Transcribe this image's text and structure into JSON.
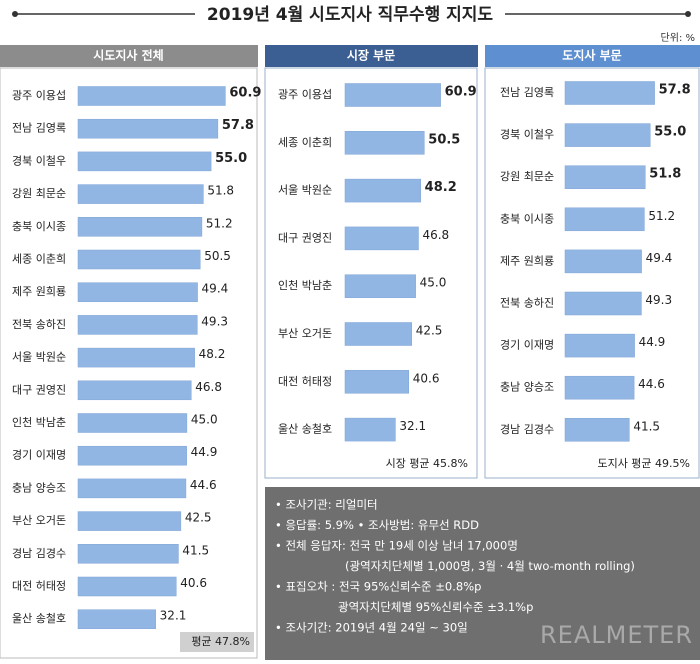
{
  "title": "2019년 4월 시도지사 직무수행 지지도",
  "unit": "단위: %",
  "chart_data": [
    {
      "type": "bar",
      "orientation": "horizontal",
      "title": "시도지사 전체",
      "color": "#92b6e4",
      "categories": [
        "광주 이용섭",
        "전남 김영록",
        "경북 이철우",
        "강원 최문순",
        "충북 이시종",
        "세종 이춘희",
        "제주 원희룡",
        "전북 송하진",
        "서울 박원순",
        "대구 권영진",
        "인천 박남춘",
        "경기 이재명",
        "충남 양승조",
        "부산 오거돈",
        "경남 김경수",
        "대전 허태정",
        "울산 송철호"
      ],
      "values": [
        60.9,
        57.8,
        55.0,
        51.8,
        51.2,
        50.5,
        49.4,
        49.3,
        48.2,
        46.8,
        45.0,
        44.9,
        44.6,
        42.5,
        41.5,
        40.6,
        32.1
      ],
      "value_labels": [
        "60.9",
        "57.8",
        "55.0",
        "51.8",
        "51.2",
        "50.5",
        "49.4",
        "49.3",
        "48.2",
        "46.8",
        "45.0",
        "44.9",
        "44.6",
        "42.5",
        "41.5",
        "40.6",
        "32.1"
      ],
      "average_label": "평균 47.8%"
    },
    {
      "type": "bar",
      "orientation": "horizontal",
      "title": "시장 부문",
      "color": "#92b6e4",
      "categories": [
        "광주 이용섭",
        "세종 이춘희",
        "서울 박원순",
        "대구 권영진",
        "인천 박남춘",
        "부산 오거돈",
        "대전 허태정",
        "울산 송철호"
      ],
      "values": [
        60.9,
        50.5,
        48.2,
        46.8,
        45.0,
        42.5,
        40.6,
        32.1
      ],
      "value_labels": [
        "60.9",
        "50.5",
        "48.2",
        "46.8",
        "45.0",
        "42.5",
        "40.6",
        "32.1"
      ],
      "average_label": "시장 평균 45.8%"
    },
    {
      "type": "bar",
      "orientation": "horizontal",
      "title": "도지사 부문",
      "color": "#92b6e4",
      "categories": [
        "전남 김영록",
        "경북 이철우",
        "강원 최문순",
        "충북 이시종",
        "제주 원희룡",
        "전북 송하진",
        "경기 이재명",
        "충남 양승조",
        "경남 김경수"
      ],
      "values": [
        57.8,
        55.0,
        51.8,
        51.2,
        49.4,
        49.3,
        44.9,
        44.6,
        41.5
      ],
      "value_labels": [
        "57.8",
        "55.0",
        "51.8",
        "51.2",
        "49.4",
        "49.3",
        "44.9",
        "44.6",
        "41.5"
      ],
      "average_label": "도지사 평균 49.5%"
    }
  ],
  "notes": [
    "• 조사기관: 리얼미터",
    "• 응답률: 5.9% • 조사방법: 유무선 RDD",
    "• 전체 응답자: 전국 만 19세 이상 남녀 17,000명",
    "(광역자치단체별 1,000명, 3월 · 4월 two-month rolling)",
    "• 표집오차 : 전국 95%신뢰수준 ±0.8%p",
    "광역자치단체별 95%신뢰수준 ±3.1%p",
    "• 조사기간: 2019년 4월 24일 ~ 30일"
  ],
  "logo": "REALMETER"
}
